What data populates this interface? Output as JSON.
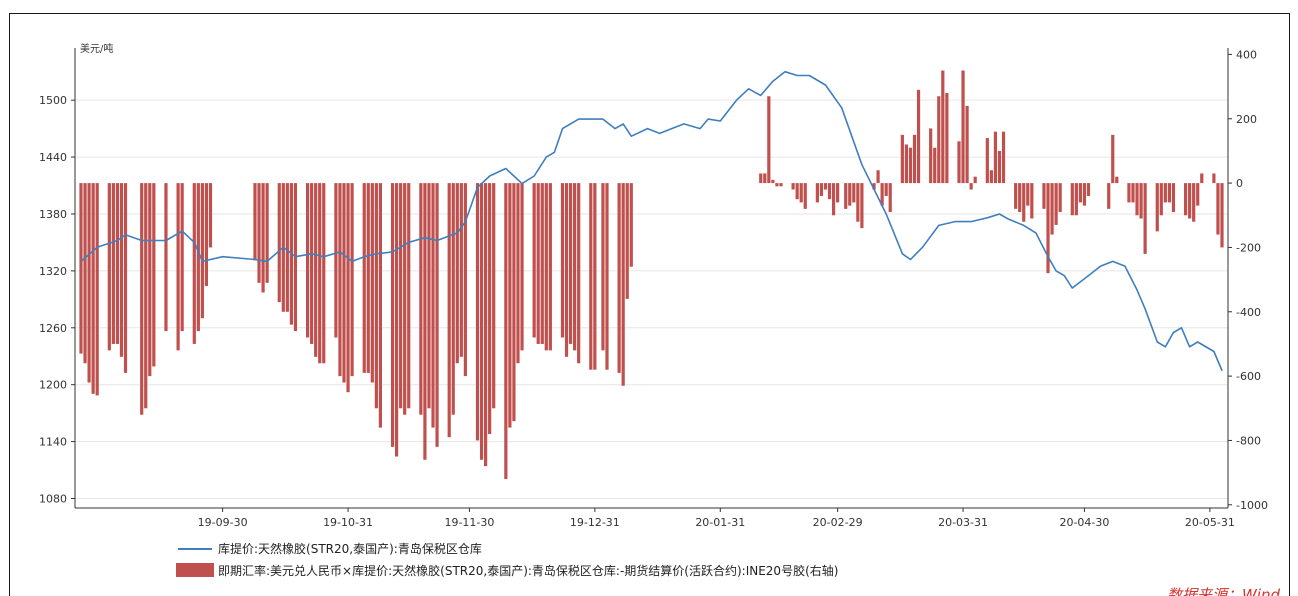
{
  "chart_data": {
    "type": "bar+line",
    "left_axis_unit": "美元/吨",
    "left_ticks": [
      1080,
      1140,
      1200,
      1260,
      1320,
      1380,
      1440,
      1500
    ],
    "right_ticks": [
      400,
      200,
      0,
      -200,
      -400,
      -600,
      -800,
      -1000
    ],
    "x_tick_labels": [
      "19-09-30",
      "19-10-31",
      "19-11-30",
      "19-12-31",
      "20-01-31",
      "20-02-29",
      "20-03-31",
      "20-04-30",
      "20-05-31"
    ],
    "ylim_left": [
      1070,
      1555
    ],
    "ylim_right": [
      -1010,
      420
    ],
    "date_range": [
      "2019-08-26",
      "2020-06-03"
    ],
    "grid": true,
    "series": [
      {
        "name": "库提价:天然橡胶(STR20,泰国产):青岛保税区仓库",
        "type": "line",
        "axis": "left",
        "color": "#3f7fbf",
        "points": [
          [
            "2019-08-26",
            1330
          ],
          [
            "2019-08-30",
            1345
          ],
          [
            "2019-09-04",
            1352
          ],
          [
            "2019-09-06",
            1358
          ],
          [
            "2019-09-10",
            1352
          ],
          [
            "2019-09-16",
            1352
          ],
          [
            "2019-09-20",
            1362
          ],
          [
            "2019-09-23",
            1350
          ],
          [
            "2019-09-25",
            1330
          ],
          [
            "2019-09-30",
            1335
          ],
          [
            "2019-10-08",
            1332
          ],
          [
            "2019-10-11",
            1330
          ],
          [
            "2019-10-15",
            1345
          ],
          [
            "2019-10-18",
            1335
          ],
          [
            "2019-10-22",
            1338
          ],
          [
            "2019-10-25",
            1335
          ],
          [
            "2019-10-29",
            1340
          ],
          [
            "2019-11-01",
            1330
          ],
          [
            "2019-11-04",
            1335
          ],
          [
            "2019-11-07",
            1338
          ],
          [
            "2019-11-11",
            1340
          ],
          [
            "2019-11-15",
            1350
          ],
          [
            "2019-11-19",
            1355
          ],
          [
            "2019-11-22",
            1352
          ],
          [
            "2019-11-27",
            1360
          ],
          [
            "2019-11-29",
            1372
          ],
          [
            "2019-12-02",
            1408
          ],
          [
            "2019-12-05",
            1420
          ],
          [
            "2019-12-09",
            1428
          ],
          [
            "2019-12-11",
            1420
          ],
          [
            "2019-12-13",
            1412
          ],
          [
            "2019-12-16",
            1420
          ],
          [
            "2019-12-19",
            1440
          ],
          [
            "2019-12-21",
            1445
          ],
          [
            "2019-12-23",
            1470
          ],
          [
            "2019-12-27",
            1480
          ],
          [
            "2020-01-02",
            1480
          ],
          [
            "2020-01-05",
            1470
          ],
          [
            "2020-01-07",
            1475
          ],
          [
            "2020-01-09",
            1462
          ],
          [
            "2020-01-13",
            1470
          ],
          [
            "2020-01-16",
            1465
          ],
          [
            "2020-01-19",
            1470
          ],
          [
            "2020-01-22",
            1475
          ],
          [
            "2020-01-26",
            1470
          ],
          [
            "2020-01-28",
            1480
          ],
          [
            "2020-01-31",
            1478
          ],
          [
            "2020-02-04",
            1500
          ],
          [
            "2020-02-07",
            1512
          ],
          [
            "2020-02-10",
            1505
          ],
          [
            "2020-02-13",
            1520
          ],
          [
            "2020-02-16",
            1530
          ],
          [
            "2020-02-19",
            1526
          ],
          [
            "2020-02-22",
            1526
          ],
          [
            "2020-02-26",
            1516
          ],
          [
            "2020-03-01",
            1492
          ],
          [
            "2020-03-06",
            1432
          ],
          [
            "2020-03-12",
            1380
          ],
          [
            "2020-03-16",
            1338
          ],
          [
            "2020-03-18",
            1332
          ],
          [
            "2020-03-21",
            1345
          ],
          [
            "2020-03-25",
            1368
          ],
          [
            "2020-03-29",
            1372
          ],
          [
            "2020-04-02",
            1372
          ],
          [
            "2020-04-06",
            1376
          ],
          [
            "2020-04-09",
            1380
          ],
          [
            "2020-04-11",
            1375
          ],
          [
            "2020-04-15",
            1368
          ],
          [
            "2020-04-18",
            1360
          ],
          [
            "2020-04-21",
            1335
          ],
          [
            "2020-04-23",
            1320
          ],
          [
            "2020-04-25",
            1315
          ],
          [
            "2020-04-27",
            1302
          ],
          [
            "2020-05-01",
            1315
          ],
          [
            "2020-05-04",
            1325
          ],
          [
            "2020-05-07",
            1330
          ],
          [
            "2020-05-10",
            1325
          ],
          [
            "2020-05-13",
            1300
          ],
          [
            "2020-05-15",
            1280
          ],
          [
            "2020-05-18",
            1245
          ],
          [
            "2020-05-20",
            1240
          ],
          [
            "2020-05-22",
            1255
          ],
          [
            "2020-05-24",
            1260
          ],
          [
            "2020-05-26",
            1240
          ],
          [
            "2020-05-28",
            1245
          ],
          [
            "2020-06-01",
            1235
          ],
          [
            "2020-06-03",
            1215
          ]
        ]
      },
      {
        "name": "即期汇率:美元兑人民币×库提价:天然橡胶(STR20,泰国产):青岛保税区仓库:-期货结算价(活跃合约):INE20号胶(右轴)",
        "type": "bar",
        "axis": "right",
        "color": "#c0504d",
        "points": [
          [
            "2019-08-26",
            -530
          ],
          [
            "2019-08-27",
            -560
          ],
          [
            "2019-08-28",
            -620
          ],
          [
            "2019-08-29",
            -655
          ],
          [
            "2019-08-30",
            -660
          ],
          [
            "2019-09-02",
            -520
          ],
          [
            "2019-09-03",
            -500
          ],
          [
            "2019-09-04",
            -500
          ],
          [
            "2019-09-05",
            -540
          ],
          [
            "2019-09-06",
            -590
          ],
          [
            "2019-09-10",
            -720
          ],
          [
            "2019-09-11",
            -700
          ],
          [
            "2019-09-12",
            -600
          ],
          [
            "2019-09-13",
            -570
          ],
          [
            "2019-09-16",
            -460
          ],
          [
            "2019-09-19",
            -520
          ],
          [
            "2019-09-20",
            -460
          ],
          [
            "2019-09-23",
            -500
          ],
          [
            "2019-09-24",
            -460
          ],
          [
            "2019-09-25",
            -420
          ],
          [
            "2019-09-26",
            -320
          ],
          [
            "2019-09-27",
            -200
          ],
          [
            "2019-10-08",
            -240
          ],
          [
            "2019-10-09",
            -310
          ],
          [
            "2019-10-10",
            -340
          ],
          [
            "2019-10-11",
            -310
          ],
          [
            "2019-10-14",
            -370
          ],
          [
            "2019-10-15",
            -400
          ],
          [
            "2019-10-16",
            -400
          ],
          [
            "2019-10-17",
            -440
          ],
          [
            "2019-10-18",
            -460
          ],
          [
            "2019-10-21",
            -480
          ],
          [
            "2019-10-22",
            -500
          ],
          [
            "2019-10-23",
            -540
          ],
          [
            "2019-10-24",
            -560
          ],
          [
            "2019-10-25",
            -560
          ],
          [
            "2019-10-28",
            -480
          ],
          [
            "2019-10-29",
            -600
          ],
          [
            "2019-10-30",
            -620
          ],
          [
            "2019-10-31",
            -650
          ],
          [
            "2019-11-01",
            -600
          ],
          [
            "2019-11-04",
            -590
          ],
          [
            "2019-11-05",
            -590
          ],
          [
            "2019-11-06",
            -620
          ],
          [
            "2019-11-07",
            -700
          ],
          [
            "2019-11-08",
            -760
          ],
          [
            "2019-11-11",
            -820
          ],
          [
            "2019-11-12",
            -850
          ],
          [
            "2019-11-13",
            -700
          ],
          [
            "2019-11-14",
            -720
          ],
          [
            "2019-11-15",
            -700
          ],
          [
            "2019-11-18",
            -720
          ],
          [
            "2019-11-19",
            -860
          ],
          [
            "2019-11-20",
            -700
          ],
          [
            "2019-11-21",
            -760
          ],
          [
            "2019-11-22",
            -820
          ],
          [
            "2019-11-25",
            -790
          ],
          [
            "2019-11-26",
            -720
          ],
          [
            "2019-11-27",
            -560
          ],
          [
            "2019-11-28",
            -540
          ],
          [
            "2019-11-29",
            -600
          ],
          [
            "2019-12-02",
            -800
          ],
          [
            "2019-12-03",
            -860
          ],
          [
            "2019-12-04",
            -880
          ],
          [
            "2019-12-05",
            -780
          ],
          [
            "2019-12-06",
            -700
          ],
          [
            "2019-12-09",
            -920
          ],
          [
            "2019-12-10",
            -760
          ],
          [
            "2019-12-11",
            -740
          ],
          [
            "2019-12-12",
            -560
          ],
          [
            "2019-12-13",
            -520
          ],
          [
            "2019-12-16",
            -480
          ],
          [
            "2019-12-17",
            -500
          ],
          [
            "2019-12-18",
            -500
          ],
          [
            "2019-12-19",
            -520
          ],
          [
            "2019-12-20",
            -520
          ],
          [
            "2019-12-23",
            -480
          ],
          [
            "2019-12-24",
            -540
          ],
          [
            "2019-12-25",
            -500
          ],
          [
            "2019-12-26",
            -520
          ],
          [
            "2019-12-27",
            -560
          ],
          [
            "2019-12-30",
            -580
          ],
          [
            "2019-12-31",
            -580
          ],
          [
            "2020-01-02",
            -520
          ],
          [
            "2020-01-03",
            -580
          ],
          [
            "2020-01-06",
            -590
          ],
          [
            "2020-01-07",
            -630
          ],
          [
            "2020-01-08",
            -360
          ],
          [
            "2020-01-09",
            -260
          ],
          [
            "2020-02-10",
            30
          ],
          [
            "2020-02-11",
            30
          ],
          [
            "2020-02-12",
            270
          ],
          [
            "2020-02-13",
            10
          ],
          [
            "2020-02-14",
            -10
          ],
          [
            "2020-02-15",
            -10
          ],
          [
            "2020-02-18",
            -20
          ],
          [
            "2020-02-19",
            -50
          ],
          [
            "2020-02-20",
            -60
          ],
          [
            "2020-02-21",
            -80
          ],
          [
            "2020-02-24",
            -60
          ],
          [
            "2020-02-25",
            -40
          ],
          [
            "2020-02-26",
            -20
          ],
          [
            "2020-02-27",
            -50
          ],
          [
            "2020-02-28",
            -100
          ],
          [
            "2020-02-29",
            -60
          ],
          [
            "2020-03-02",
            -80
          ],
          [
            "2020-03-03",
            -70
          ],
          [
            "2020-03-04",
            -60
          ],
          [
            "2020-03-05",
            -120
          ],
          [
            "2020-03-06",
            -140
          ],
          [
            "2020-03-09",
            -20
          ],
          [
            "2020-03-10",
            40
          ],
          [
            "2020-03-11",
            -70
          ],
          [
            "2020-03-12",
            -40
          ],
          [
            "2020-03-13",
            -90
          ],
          [
            "2020-03-16",
            150
          ],
          [
            "2020-03-17",
            120
          ],
          [
            "2020-03-18",
            110
          ],
          [
            "2020-03-19",
            150
          ],
          [
            "2020-03-20",
            290
          ],
          [
            "2020-03-23",
            170
          ],
          [
            "2020-03-24",
            110
          ],
          [
            "2020-03-25",
            270
          ],
          [
            "2020-03-26",
            350
          ],
          [
            "2020-03-27",
            280
          ],
          [
            "2020-03-30",
            130
          ],
          [
            "2020-03-31",
            350
          ],
          [
            "2020-04-01",
            240
          ],
          [
            "2020-04-02",
            -20
          ],
          [
            "2020-04-03",
            20
          ],
          [
            "2020-04-06",
            140
          ],
          [
            "2020-04-07",
            40
          ],
          [
            "2020-04-08",
            160
          ],
          [
            "2020-04-09",
            100
          ],
          [
            "2020-04-10",
            160
          ],
          [
            "2020-04-13",
            -80
          ],
          [
            "2020-04-14",
            -90
          ],
          [
            "2020-04-15",
            -120
          ],
          [
            "2020-04-16",
            -70
          ],
          [
            "2020-04-17",
            -110
          ],
          [
            "2020-04-20",
            -80
          ],
          [
            "2020-04-21",
            -280
          ],
          [
            "2020-04-22",
            -160
          ],
          [
            "2020-04-23",
            -130
          ],
          [
            "2020-04-24",
            -90
          ],
          [
            "2020-04-27",
            -100
          ],
          [
            "2020-04-28",
            -100
          ],
          [
            "2020-04-29",
            -60
          ],
          [
            "2020-04-30",
            -70
          ],
          [
            "2020-05-01",
            -40
          ],
          [
            "2020-05-06",
            -80
          ],
          [
            "2020-05-07",
            150
          ],
          [
            "2020-05-08",
            20
          ],
          [
            "2020-05-11",
            -60
          ],
          [
            "2020-05-12",
            -60
          ],
          [
            "2020-05-13",
            -100
          ],
          [
            "2020-05-14",
            -110
          ],
          [
            "2020-05-15",
            -220
          ],
          [
            "2020-05-18",
            -150
          ],
          [
            "2020-05-19",
            -100
          ],
          [
            "2020-05-20",
            -60
          ],
          [
            "2020-05-21",
            -60
          ],
          [
            "2020-05-22",
            -90
          ],
          [
            "2020-05-25",
            -100
          ],
          [
            "2020-05-26",
            -110
          ],
          [
            "2020-05-27",
            -120
          ],
          [
            "2020-05-28",
            -70
          ],
          [
            "2020-05-29",
            30
          ],
          [
            "2020-06-01",
            30
          ],
          [
            "2020-06-02",
            -160
          ],
          [
            "2020-06-03",
            -200
          ]
        ]
      }
    ]
  },
  "legend": {
    "line_label": "库提价:天然橡胶(STR20,泰国产):青岛保税区仓库",
    "bar_label": "即期汇率:美元兑人民币×库提价:天然橡胶(STR20,泰国产):青岛保税区仓库:-期货结算价(活跃合约):INE20号胶(右轴)"
  },
  "source_label": "数据来源：Wind",
  "colors": {
    "line": "#3f7fbf",
    "bar": "#c0504d",
    "grid": "#e6e6e6",
    "axis": "#333333"
  }
}
